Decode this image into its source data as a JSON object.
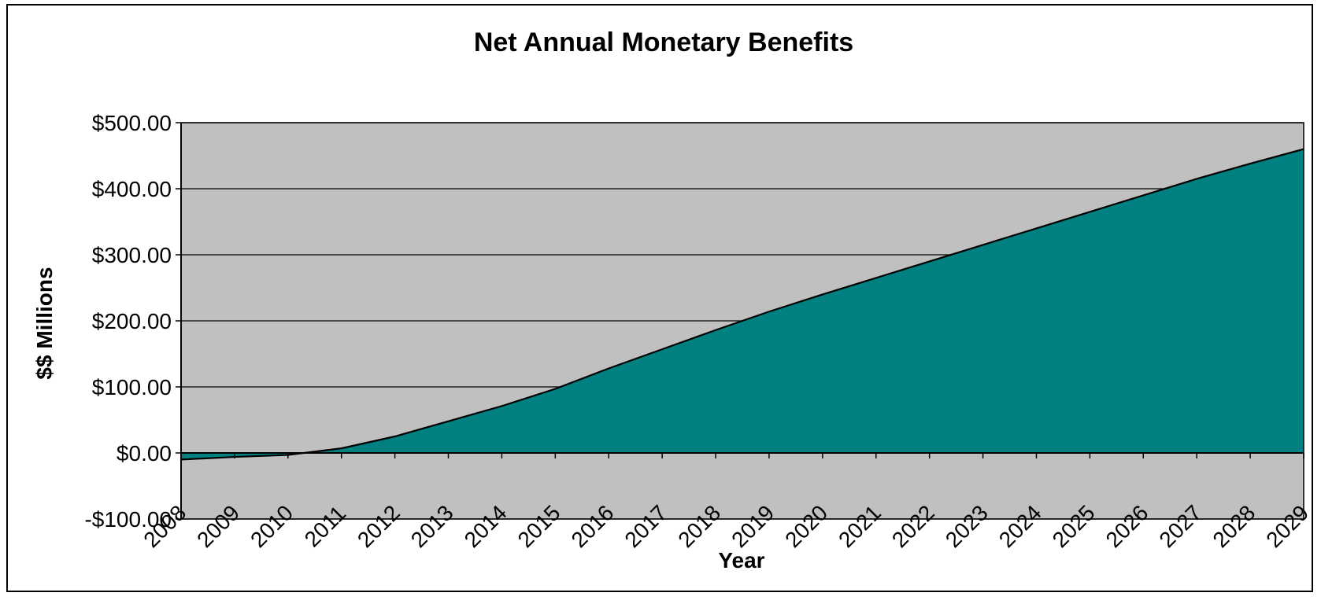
{
  "chart_data": {
    "type": "area",
    "title": "Net Annual Monetary Benefits",
    "xlabel": "Year",
    "ylabel": "$$ Millions",
    "x": [
      "2008",
      "2009",
      "2010",
      "2011",
      "2012",
      "2013",
      "2014",
      "2015",
      "2016",
      "2017",
      "2018",
      "2019",
      "2020",
      "2021",
      "2022",
      "2023",
      "2024",
      "2025",
      "2026",
      "2027",
      "2028",
      "2029"
    ],
    "values": [
      -10,
      -6,
      -3,
      7,
      25,
      48,
      71,
      97,
      128,
      157,
      186,
      214,
      240,
      265,
      290,
      315,
      340,
      365,
      390,
      415,
      438,
      460
    ],
    "ylim": [
      -100,
      500
    ],
    "yticks": [
      500,
      400,
      300,
      200,
      100,
      0,
      -100
    ],
    "ytick_labels": [
      "$500.00",
      "$400.00",
      "$300.00",
      "$200.00",
      "$100.00",
      "$0.00",
      "-$100.00"
    ],
    "grid": true,
    "legend": "none",
    "colors": {
      "area_fill": "#008080",
      "plot_background": "#c0c0c0",
      "line": "#000000",
      "gridline": "#000000"
    }
  }
}
